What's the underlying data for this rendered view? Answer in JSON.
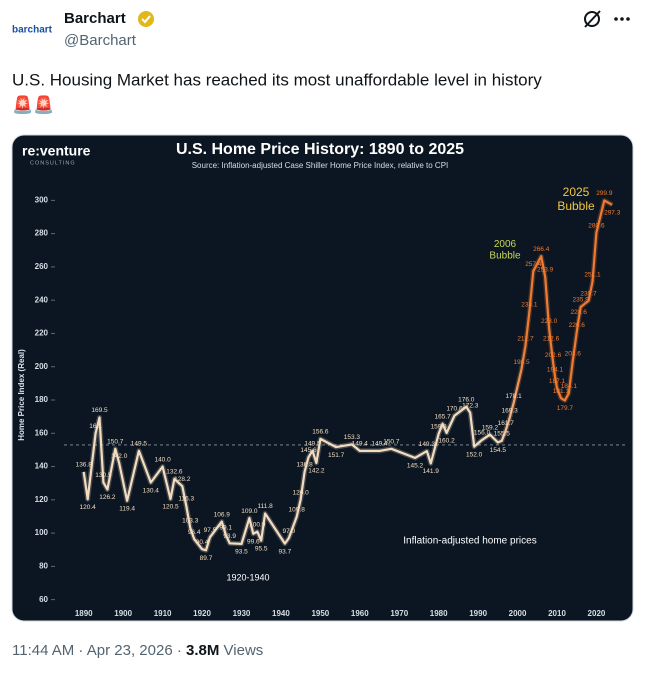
{
  "post": {
    "avatar_text": "barchart",
    "name": "Barchart",
    "handle": "@Barchart",
    "text": "U.S. Housing Market has reached its most unaffordable level in history",
    "emoji": "🚨🚨",
    "time": "11:44 AM · Apr 23, 2026 ·",
    "views_count": "3.8M",
    "views_label": "Views"
  },
  "chart_data": {
    "type": "line",
    "title": "U.S. Home Price History: 1890 to 2025",
    "subtitle": "Source: Inflation-adjusted Case Shiller Home Price Index, relative to CPI",
    "logo": "re:venture",
    "logo_sub": "CONSULTING",
    "y_label": "Home Price Index (Real)",
    "annotations": [
      "2006\nBubble",
      "2025\nBubble",
      "1920-1940",
      "Inflation-adjusted home prices"
    ],
    "x": [
      1890,
      1891,
      1893,
      1894,
      1895,
      1896,
      1898,
      1899,
      1901,
      1904,
      1907,
      1910,
      1912,
      1913,
      1915,
      1916,
      1917,
      1918,
      1920,
      1921,
      1922,
      1925,
      1926,
      1927,
      1930,
      1932,
      1933,
      1934,
      1935,
      1936,
      1941,
      1942,
      1944,
      1945,
      1946,
      1947,
      1948,
      1949,
      1950,
      1954,
      1958,
      1960,
      1965,
      1968,
      1974,
      1977,
      1978,
      1980,
      1981,
      1982,
      1984,
      1987,
      1988,
      1989,
      1991,
      1993,
      1995,
      1996,
      1997,
      1998,
      1999,
      2001,
      2002,
      2003,
      2004,
      2006,
      2007,
      2008,
      2008.5,
      2009,
      2009.5,
      2010,
      2011,
      2012,
      2013,
      2014,
      2015,
      2015.5,
      2016,
      2018,
      2019,
      2020,
      2022,
      2024
    ],
    "series": [
      {
        "name": "Inflation-adjusted home prices",
        "colors": [
          "#f3dcc0",
          "#f07a30"
        ],
        "values": [
          136.8,
          120.4,
          160,
          169.5,
          130.5,
          126.2,
          150.7,
          142,
          119.4,
          149.5,
          130.4,
          140,
          120.5,
          132.6,
          128.2,
          116.3,
          103.3,
          96.4,
          90.4,
          89.7,
          97.5,
          106.9,
          99.1,
          93.9,
          93.5,
          109,
          99.6,
          100.9,
          95.5,
          111.8,
          93.7,
          97,
          109.8,
          120,
          136.8,
          145.6,
          149.5,
          142.2,
          156.6,
          151.7,
          153.3,
          149.4,
          149.4,
          150.7,
          145.2,
          149.3,
          141.9,
          159.8,
          165.7,
          160.2,
          170.6,
          176,
          172.3,
          152,
          156,
          159.2,
          154.5,
          155.5,
          161.7,
          169.3,
          178.1,
          198.5,
          212.7,
          233.1,
          257.4,
          266.4,
          253.9,
          223,
          212.6,
          202.6,
          194.1,
          187.1,
          181.1,
          179.7,
          184.1,
          203.6,
          220.6,
          228.6,
          235.9,
          239.7,
          251.1,
          280.6,
          299.9,
          297.3
        ],
        "value_labels": [
          "136.8",
          "120.4",
          "160.",
          "169.5",
          "130.5",
          "126.2",
          "150.7",
          "142.0",
          "119.4",
          "149.5",
          "130.4",
          "140.0",
          "120.5",
          "132.6",
          "128.2",
          "116.3",
          "103.3",
          "96.4",
          "90.4",
          "89.7",
          "97.5",
          "106.9",
          "99.1",
          "93.9",
          "93.5",
          "109.0",
          "99.6",
          "100.9",
          "95.5",
          "111.8",
          "93.7",
          "97.0",
          "109.8",
          "120.0",
          "136.8",
          "145.6",
          "149.5",
          "142.2",
          "156.6",
          "151.7",
          "153.3",
          "149.4",
          "149.4",
          "150.7",
          "145.2",
          "149.3",
          "141.9",
          "159.8",
          "165.7",
          "160.2",
          "170.6",
          "176.0",
          "172.3",
          "152.0",
          "156.0",
          "159.2",
          "154.5",
          "155.5",
          "161.7",
          "169.3",
          "178.1",
          "198.5",
          "212.7",
          "233.1",
          "257.4",
          "266.4",
          "253.9",
          "223.0",
          "212.6",
          "202.6",
          "194.1",
          "187.1",
          "181.1",
          "179.7",
          "184.1",
          "203.6",
          "220.6",
          "228.6",
          "235.9",
          "239.7",
          "251.1",
          "280.6",
          "299.9",
          "297.3"
        ]
      }
    ],
    "highlight_from": 2000,
    "reference_line": 153,
    "xlim": [
      1885,
      2028
    ],
    "xticks": [
      1890,
      1900,
      1910,
      1920,
      1930,
      1940,
      1950,
      1960,
      1970,
      1980,
      1990,
      2000,
      2010,
      2020
    ],
    "ylim": [
      55,
      305
    ],
    "yticks": [
      60,
      80,
      100,
      120,
      140,
      160,
      180,
      200,
      220,
      240,
      260,
      280,
      300
    ]
  }
}
